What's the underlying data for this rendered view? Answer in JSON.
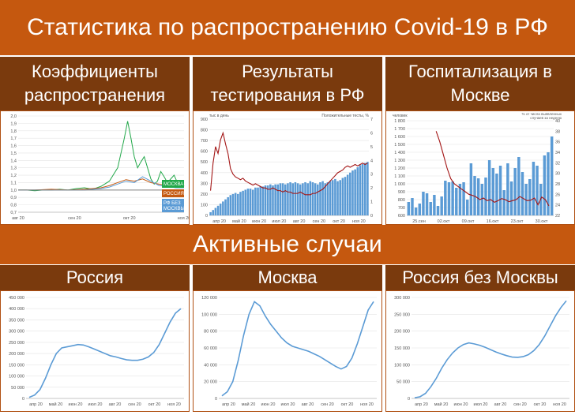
{
  "page": {
    "title": "Статистика по распространению Covid-19 в РФ",
    "section_active": "Активные случаи"
  },
  "headers": {
    "coef": "Коэффициенты распространения",
    "tests": "Результаты тестирования в РФ",
    "hosp": "Госпитализация в Москве",
    "russia": "Россия",
    "moscow": "Москва",
    "russia_wo": "Россия без Москвы"
  },
  "colors": {
    "banner": "#c5580f",
    "header": "#7a3a0d",
    "blue": "#5b9bd5",
    "darkred": "#a31515",
    "green": "#22a84a",
    "orange": "#c55a11",
    "grey": "#808080"
  },
  "chart_data": [
    {
      "id": "coef",
      "type": "line",
      "ylim": [
        0.7,
        2.0
      ],
      "yticks": [
        "2,0",
        "1,9",
        "1,8",
        "1,7",
        "1,6",
        "1,5",
        "1,4",
        "1,3",
        "1,2",
        "1,1",
        "1,0",
        "0,9",
        "0,8",
        "0,7"
      ],
      "xticks": [
        "авг 20",
        "сен 20",
        "окт 20",
        "ноя 20"
      ],
      "x_range": [
        0,
        100
      ],
      "x_positions": [
        0,
        34,
        67,
        100
      ],
      "series": [
        {
          "name": "МОСКВА",
          "color": "#22a84a",
          "x": [
            0,
            5,
            10,
            15,
            20,
            25,
            30,
            35,
            40,
            45,
            50,
            55,
            60,
            62,
            64,
            66,
            68,
            70,
            72,
            74,
            76,
            78,
            80,
            82,
            84,
            86,
            88,
            90,
            92,
            94,
            96,
            98,
            100
          ],
          "values": [
            1.0,
            1.0,
            0.99,
            1.0,
            1.0,
            1.01,
            1.0,
            1.02,
            1.03,
            1.01,
            1.05,
            1.12,
            1.3,
            1.5,
            1.7,
            1.93,
            1.7,
            1.45,
            1.3,
            1.38,
            1.45,
            1.3,
            1.15,
            1.08,
            1.12,
            1.25,
            1.18,
            1.1,
            1.15,
            1.2,
            1.1,
            1.12,
            1.05
          ]
        },
        {
          "name": "РОССИЯ",
          "color": "#c55a11",
          "x": [
            0,
            10,
            20,
            30,
            40,
            50,
            55,
            60,
            65,
            70,
            75,
            80,
            85,
            90,
            95,
            100
          ],
          "values": [
            1.0,
            1.0,
            1.01,
            1.0,
            1.01,
            1.03,
            1.06,
            1.1,
            1.14,
            1.12,
            1.15,
            1.1,
            1.08,
            1.06,
            1.05,
            1.04
          ]
        },
        {
          "name": "РФ БЕЗ МОСКВЫ",
          "color": "#5b9bd5",
          "x": [
            0,
            10,
            20,
            30,
            40,
            50,
            55,
            60,
            65,
            70,
            75,
            80,
            85,
            90,
            95,
            100
          ],
          "values": [
            1.0,
            1.0,
            1.0,
            1.0,
            1.0,
            1.02,
            1.04,
            1.08,
            1.12,
            1.1,
            1.18,
            1.12,
            1.06,
            1.05,
            1.03,
            1.03
          ]
        },
        {
          "name": "",
          "color": "#808080",
          "x": [
            0,
            100
          ],
          "values": [
            1.0,
            1.0
          ]
        }
      ]
    },
    {
      "id": "tests",
      "type": "bar",
      "ylim": [
        0,
        900
      ],
      "yticks": [
        "900",
        "800",
        "700",
        "600",
        "500",
        "400",
        "300",
        "200",
        "100",
        "0"
      ],
      "y2lim": [
        0,
        7
      ],
      "y2ticks": [
        "7",
        "6",
        "5",
        "4",
        "3",
        "2",
        "1",
        "0"
      ],
      "y2label": "Положительные тесты, %",
      "ylabel": "тыс в день",
      "xticks": [
        "апр 20",
        "май 20",
        "июн 20",
        "июл 20",
        "авг 20",
        "сен 20",
        "окт 20",
        "ноя 20"
      ],
      "values": [
        30,
        50,
        70,
        90,
        110,
        130,
        150,
        170,
        190,
        200,
        210,
        200,
        220,
        230,
        240,
        250,
        250,
        240,
        260,
        260,
        270,
        270,
        280,
        280,
        290,
        280,
        290,
        290,
        300,
        300,
        290,
        300,
        310,
        300,
        310,
        300,
        290,
        300,
        310,
        300,
        320,
        310,
        300,
        290,
        310,
        320,
        300,
        310,
        320,
        330,
        340,
        320,
        330,
        350,
        360,
        380,
        400,
        420,
        430,
        450,
        470,
        480,
        490,
        500
      ],
      "series": [
        {
          "name": "Положительные тесты, %",
          "values": [
            1.8,
            3.8,
            5.0,
            4.5,
            5.5,
            6.0,
            5.2,
            4.5,
            3.4,
            3.0,
            2.8,
            2.7,
            2.6,
            2.7,
            2.5,
            2.4,
            2.3,
            2.2,
            2.3,
            2.2,
            2.1,
            2.0,
            2.0,
            1.9,
            1.9,
            2.0,
            1.9,
            1.8,
            1.8,
            1.7,
            1.8,
            1.7,
            1.7,
            1.6,
            1.6,
            1.6,
            1.7,
            1.6,
            1.5,
            1.5,
            1.5,
            1.6,
            1.6,
            1.7,
            1.8,
            1.9,
            2.1,
            2.3,
            2.5,
            2.7,
            2.9,
            3.1,
            3.2,
            3.3,
            3.5,
            3.6,
            3.5,
            3.6,
            3.7,
            3.6,
            3.7,
            3.8,
            3.7,
            3.8
          ]
        }
      ]
    },
    {
      "id": "hosp",
      "type": "bar",
      "ylabel": "человек",
      "y2label": "% от числа выявленных случаев за неделю",
      "ylim": [
        600,
        1800
      ],
      "yticks": [
        "1 800",
        "1 700",
        "1 600",
        "1 500",
        "1 400",
        "1 300",
        "1 200",
        "1 100",
        "1 000",
        "900",
        "800",
        "700",
        "600"
      ],
      "y2lim": [
        22,
        40
      ],
      "y2ticks": [
        "40",
        "38",
        "36",
        "34",
        "32",
        "30",
        "28",
        "26",
        "24",
        "22"
      ],
      "xticks": [
        "25.сен",
        "02.окт",
        "09.окт",
        "16.окт",
        "23.окт",
        "30.окт"
      ],
      "values": [
        770,
        820,
        700,
        750,
        900,
        880,
        770,
        860,
        720,
        840,
        1040,
        1020,
        1030,
        950,
        1000,
        1020,
        800,
        1260,
        1100,
        1070,
        1000,
        1080,
        1300,
        1200,
        1130,
        1230,
        920,
        1260,
        1030,
        1200,
        1340,
        1150,
        1000,
        1060,
        1280,
        1230,
        1000,
        1360,
        1400,
        1600
      ],
      "series": [
        {
          "name": "% от числа выявленных случаев за неделю",
          "values": [
            38,
            36,
            33.5,
            31,
            29,
            28,
            27.5,
            27,
            26.5,
            26,
            25.8,
            25.5,
            25,
            25.3,
            24.8,
            25,
            24.5,
            24.8,
            25.2,
            25,
            24.6,
            24.8,
            25,
            25.6,
            25.2,
            24.8,
            24.9,
            25.3,
            24,
            25.5,
            25,
            23.8
          ]
        }
      ]
    },
    {
      "id": "russia",
      "type": "line",
      "ylim": [
        0,
        450000
      ],
      "yticks": [
        "450 000",
        "400 000",
        "350 000",
        "300 000",
        "250 000",
        "200 000",
        "150 000",
        "100 000",
        "50 000",
        "0"
      ],
      "xticks": [
        "апр 20",
        "май 20",
        "июн 20",
        "июл 20",
        "авг 20",
        "сен 20",
        "окт 20",
        "ноя 20"
      ],
      "series": [
        {
          "name": "",
          "values": [
            5000,
            15000,
            40000,
            90000,
            150000,
            200000,
            225000,
            230000,
            235000,
            240000,
            238000,
            230000,
            220000,
            210000,
            200000,
            190000,
            185000,
            178000,
            172000,
            170000,
            170000,
            175000,
            185000,
            205000,
            240000,
            290000,
            340000,
            380000,
            400000
          ]
        }
      ]
    },
    {
      "id": "moscow",
      "type": "line",
      "ylim": [
        0,
        120000
      ],
      "yticks": [
        "120 000",
        "100 000",
        "80 000",
        "60 000",
        "40 000",
        "20 000",
        "0"
      ],
      "xticks": [
        "апр 20",
        "май 20",
        "июн 20",
        "июл 20",
        "авг 20",
        "сен 20",
        "окт 20",
        "ноя 20"
      ],
      "series": [
        {
          "name": "",
          "values": [
            3000,
            8000,
            20000,
            45000,
            75000,
            100000,
            115000,
            110000,
            98000,
            88000,
            80000,
            72000,
            66000,
            62000,
            60000,
            58000,
            56000,
            53000,
            50000,
            46000,
            42000,
            38000,
            35000,
            38000,
            48000,
            65000,
            85000,
            105000,
            115000
          ]
        }
      ]
    },
    {
      "id": "russia_wo",
      "type": "line",
      "ylim": [
        0,
        300000
      ],
      "yticks": [
        "300 000",
        "250 000",
        "200 000",
        "150 000",
        "100 000",
        "50 000",
        "0"
      ],
      "xticks": [
        "апр 20",
        "май 20",
        "июн 20",
        "июл 20",
        "авг 20",
        "сен 20",
        "окт 20",
        "ноя 20"
      ],
      "series": [
        {
          "name": "",
          "values": [
            2000,
            5000,
            15000,
            35000,
            60000,
            90000,
            115000,
            135000,
            150000,
            160000,
            165000,
            162000,
            158000,
            152000,
            145000,
            138000,
            132000,
            127000,
            123000,
            122000,
            124000,
            130000,
            142000,
            160000,
            185000,
            215000,
            245000,
            270000,
            290000
          ]
        }
      ]
    }
  ]
}
